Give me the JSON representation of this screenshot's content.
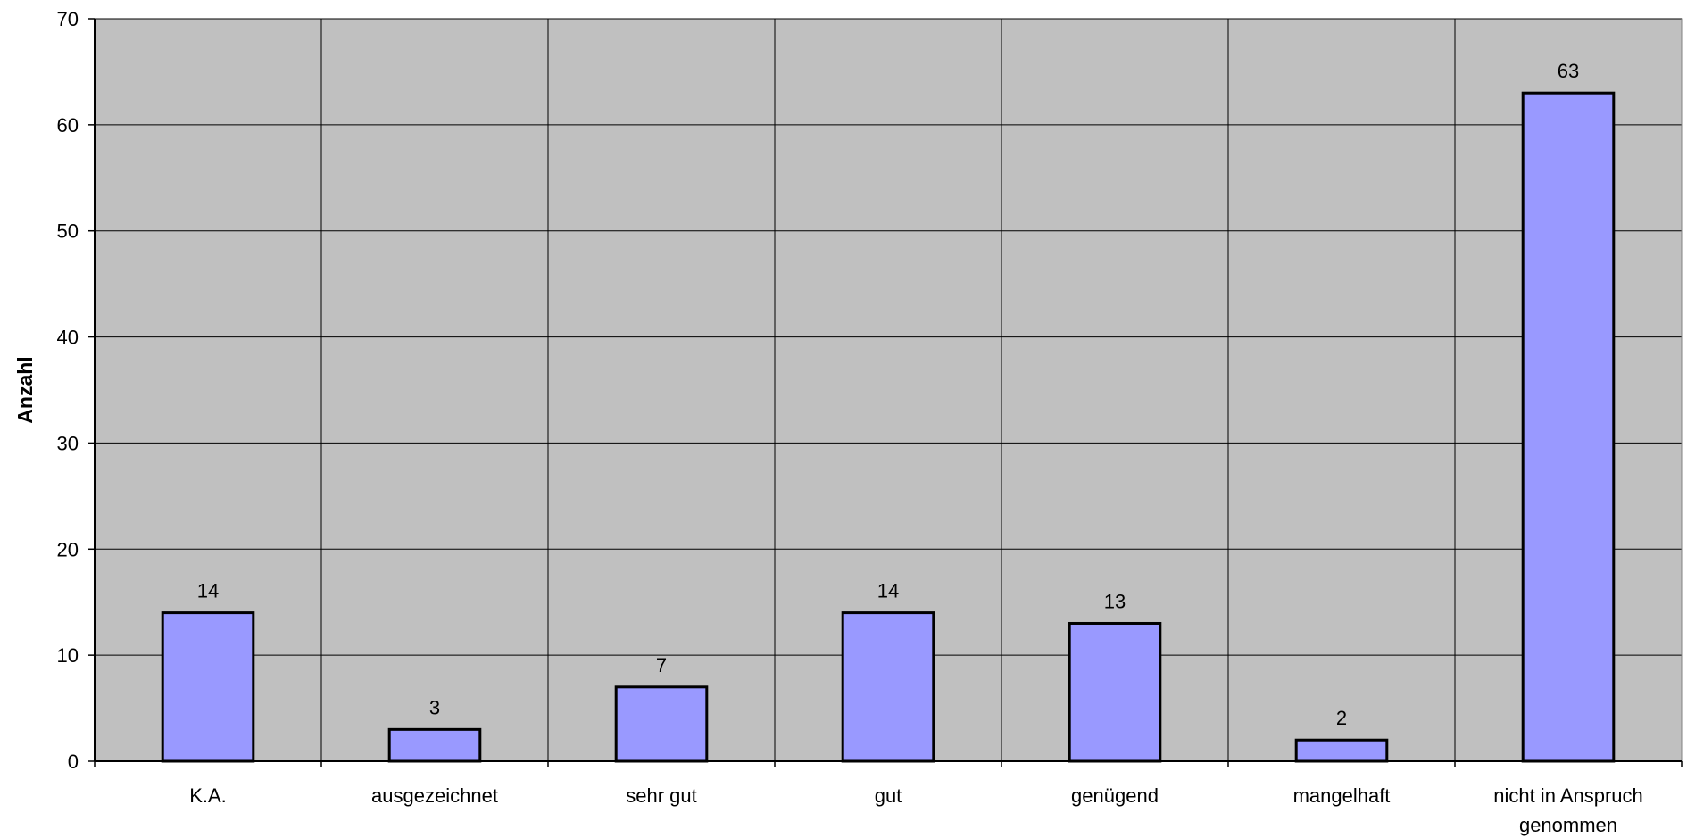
{
  "chart_data": {
    "type": "bar",
    "title": "",
    "xlabel": "",
    "ylabel": "Anzahl",
    "ylim": [
      0,
      70
    ],
    "yticks": [
      0,
      10,
      20,
      30,
      40,
      50,
      60,
      70
    ],
    "grid": true,
    "legend": "none",
    "categories": [
      "K.A.",
      "ausgezeichnet",
      "sehr gut",
      "gut",
      "genügend",
      "mangelhaft",
      "nicht in Anspruch genommen"
    ],
    "category_lines": [
      [
        "K.A."
      ],
      [
        "ausgezeichnet"
      ],
      [
        "sehr gut"
      ],
      [
        "gut"
      ],
      [
        "genügend"
      ],
      [
        "mangelhaft"
      ],
      [
        "nicht in Anspruch",
        "genommen"
      ]
    ],
    "values": [
      14,
      3,
      7,
      14,
      13,
      2,
      63
    ],
    "data_labels": [
      "14",
      "3",
      "7",
      "14",
      "13",
      "2",
      "63"
    ],
    "colors": {
      "plot_background": "#c0c0c0",
      "bar_fill": "#9999ff",
      "bar_stroke": "#000000",
      "gridline": "#000000"
    }
  }
}
